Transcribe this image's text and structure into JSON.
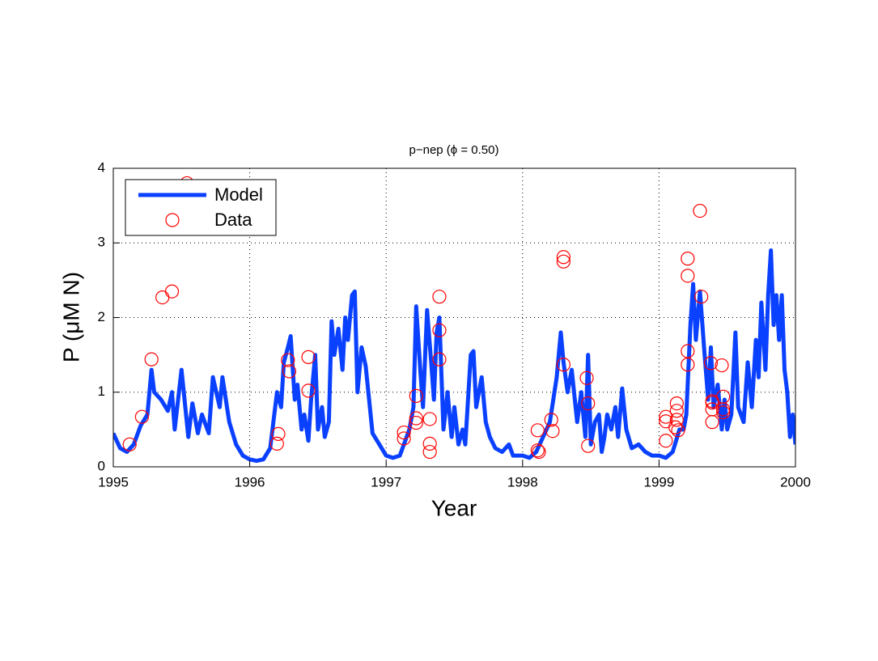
{
  "chart_data": {
    "type": "line",
    "title": "p−nep (ϕ = 0.50)",
    "xlabel": "Year",
    "ylabel": "P (μM N)",
    "xlim": [
      1995,
      2000
    ],
    "ylim": [
      0,
      4
    ],
    "xticks": [
      1995,
      1996,
      1997,
      1998,
      1999,
      2000
    ],
    "yticks": [
      0,
      1,
      2,
      3,
      4
    ],
    "grid": true,
    "legend": "upper left",
    "series": [
      {
        "name": "Model",
        "type": "line",
        "color": "#0a40ff",
        "x": [
          1995.0,
          1995.05,
          1995.1,
          1995.15,
          1995.2,
          1995.25,
          1995.28,
          1995.3,
          1995.35,
          1995.4,
          1995.43,
          1995.45,
          1995.5,
          1995.55,
          1995.58,
          1995.62,
          1995.65,
          1995.7,
          1995.73,
          1995.78,
          1995.8,
          1995.85,
          1995.9,
          1995.95,
          1996.0,
          1996.05,
          1996.1,
          1996.15,
          1996.2,
          1996.23,
          1996.25,
          1996.28,
          1996.3,
          1996.33,
          1996.35,
          1996.38,
          1996.4,
          1996.43,
          1996.45,
          1996.48,
          1996.5,
          1996.53,
          1996.55,
          1996.58,
          1996.6,
          1996.62,
          1996.65,
          1996.68,
          1996.7,
          1996.72,
          1996.75,
          1996.77,
          1996.79,
          1996.82,
          1996.85,
          1996.9,
          1996.95,
          1997.0,
          1997.05,
          1997.1,
          1997.13,
          1997.17,
          1997.2,
          1997.22,
          1997.25,
          1997.27,
          1997.3,
          1997.33,
          1997.35,
          1997.37,
          1997.39,
          1997.42,
          1997.45,
          1997.48,
          1997.5,
          1997.53,
          1997.56,
          1997.58,
          1997.62,
          1997.64,
          1997.66,
          1997.7,
          1997.73,
          1997.76,
          1997.8,
          1997.85,
          1997.9,
          1997.93,
          1998.0,
          1998.05,
          1998.1,
          1998.15,
          1998.2,
          1998.25,
          1998.28,
          1998.3,
          1998.33,
          1998.36,
          1998.4,
          1998.43,
          1998.46,
          1998.48,
          1998.5,
          1998.53,
          1998.56,
          1998.58,
          1998.6,
          1998.62,
          1998.65,
          1998.68,
          1998.7,
          1998.73,
          1998.76,
          1998.8,
          1998.85,
          1998.9,
          1998.95,
          1999.0,
          1999.05,
          1999.1,
          1999.15,
          1999.18,
          1999.2,
          1999.23,
          1999.25,
          1999.27,
          1999.3,
          1999.33,
          1999.36,
          1999.38,
          1999.4,
          1999.43,
          1999.46,
          1999.48,
          1999.5,
          1999.53,
          1999.56,
          1999.58,
          1999.62,
          1999.65,
          1999.68,
          1999.71,
          1999.73,
          1999.75,
          1999.78,
          1999.8,
          1999.82,
          1999.84,
          1999.86,
          1999.88,
          1999.9,
          1999.92,
          1999.94,
          1999.96,
          1999.98,
          2000.0
        ],
        "values": [
          0.45,
          0.25,
          0.2,
          0.3,
          0.55,
          0.7,
          1.3,
          1.0,
          0.9,
          0.75,
          1.0,
          0.5,
          1.3,
          0.4,
          0.85,
          0.45,
          0.7,
          0.45,
          1.2,
          0.8,
          1.2,
          0.6,
          0.3,
          0.15,
          0.1,
          0.08,
          0.1,
          0.25,
          1.0,
          0.8,
          1.4,
          1.6,
          1.75,
          0.9,
          1.1,
          0.5,
          0.7,
          0.35,
          0.9,
          1.5,
          0.5,
          0.8,
          0.4,
          0.6,
          1.95,
          1.5,
          1.85,
          1.3,
          2.0,
          1.7,
          2.3,
          2.35,
          1.0,
          1.6,
          1.35,
          0.45,
          0.3,
          0.15,
          0.12,
          0.15,
          0.3,
          0.5,
          0.8,
          2.15,
          1.3,
          0.8,
          2.1,
          1.4,
          0.9,
          1.8,
          2.0,
          0.5,
          1.0,
          0.4,
          0.8,
          0.3,
          0.5,
          0.3,
          1.5,
          1.55,
          0.8,
          1.2,
          0.6,
          0.4,
          0.25,
          0.2,
          0.3,
          0.15,
          0.15,
          0.12,
          0.2,
          0.4,
          0.6,
          1.2,
          1.8,
          1.4,
          1.0,
          1.3,
          0.6,
          1.0,
          0.4,
          1.5,
          0.3,
          0.6,
          0.7,
          0.2,
          0.4,
          0.7,
          0.5,
          0.8,
          0.4,
          1.05,
          0.5,
          0.25,
          0.3,
          0.2,
          0.15,
          0.15,
          0.12,
          0.2,
          0.5,
          0.5,
          0.7,
          1.9,
          2.45,
          1.7,
          2.35,
          1.6,
          0.9,
          1.6,
          0.8,
          1.1,
          0.5,
          0.9,
          0.5,
          0.7,
          1.8,
          0.8,
          0.6,
          1.4,
          0.8,
          1.7,
          1.2,
          2.2,
          1.3,
          2.3,
          2.9,
          1.9,
          2.3,
          1.7,
          2.3,
          1.3,
          1.0,
          0.4,
          0.7,
          0.3
        ]
      },
      {
        "name": "Data",
        "type": "scatter",
        "color": "#ff0000",
        "x": [
          1995.12,
          1995.21,
          1995.28,
          1995.36,
          1995.43,
          1995.54,
          1996.2,
          1996.21,
          1996.28,
          1996.29,
          1996.43,
          1996.43,
          1997.13,
          1997.13,
          1997.22,
          1997.22,
          1997.22,
          1997.32,
          1997.32,
          1997.32,
          1997.39,
          1997.39,
          1997.39,
          1998.11,
          1998.11,
          1998.12,
          1998.21,
          1998.22,
          1998.3,
          1998.3,
          1998.3,
          1998.47,
          1998.48,
          1998.48,
          1999.05,
          1999.05,
          1999.05,
          1999.12,
          1999.13,
          1999.13,
          1999.13,
          1999.14,
          1999.21,
          1999.21,
          1999.21,
          1999.21,
          1999.3,
          1999.31,
          1999.38,
          1999.39,
          1999.39,
          1999.39,
          1999.39,
          1999.46,
          1999.47,
          1999.47,
          1999.47
        ],
        "values": [
          0.3,
          0.67,
          1.44,
          2.27,
          2.35,
          3.8,
          0.31,
          0.44,
          1.43,
          1.28,
          1.47,
          1.02,
          0.38,
          0.46,
          0.59,
          0.65,
          0.95,
          0.64,
          0.31,
          0.2,
          2.28,
          1.83,
          1.44,
          0.49,
          0.22,
          0.2,
          0.63,
          0.48,
          2.81,
          2.75,
          1.37,
          1.19,
          0.85,
          0.28,
          0.35,
          0.61,
          0.67,
          0.53,
          0.63,
          0.75,
          0.85,
          0.49,
          2.56,
          2.79,
          1.55,
          1.37,
          3.43,
          2.28,
          1.39,
          0.86,
          0.77,
          0.6,
          0.88,
          1.36,
          0.94,
          0.77,
          0.73
        ]
      }
    ]
  }
}
